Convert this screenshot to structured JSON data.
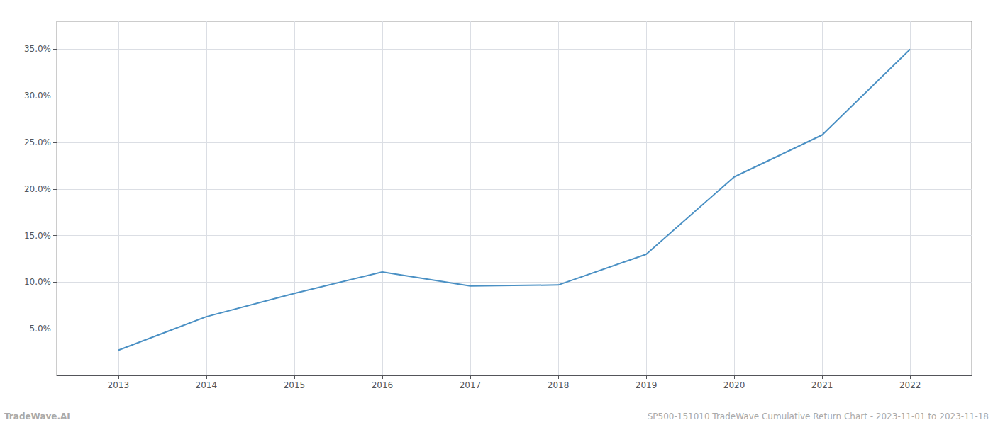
{
  "chart_data": {
    "type": "line",
    "x": [
      2013,
      2014,
      2015,
      2016,
      2017,
      2018,
      2019,
      2020,
      2021,
      2022
    ],
    "values": [
      0.027,
      0.063,
      0.088,
      0.111,
      0.096,
      0.097,
      0.13,
      0.213,
      0.258,
      0.35
    ],
    "color": "#4a90c4",
    "xlim": [
      2012.3,
      2022.7
    ],
    "xticks": [
      2013,
      2014,
      2015,
      2016,
      2017,
      2018,
      2019,
      2020,
      2021,
      2022
    ],
    "ylim": [
      0.0,
      0.38
    ],
    "yticks": [
      {
        "value": 0.05,
        "label": "5.0%"
      },
      {
        "value": 0.1,
        "label": "10.0%"
      },
      {
        "value": 0.15,
        "label": "15.0%"
      },
      {
        "value": 0.2,
        "label": "20.0%"
      },
      {
        "value": 0.25,
        "label": "25.0%"
      },
      {
        "value": 0.3,
        "label": "30.0%"
      },
      {
        "value": 0.35,
        "label": "35.0%"
      }
    ],
    "grid": true,
    "annotations": [
      "TradeWave.AI",
      "SP500-151010 TradeWave Cumulative Return Chart - 2023-11-01 to 2023-11-18"
    ]
  }
}
